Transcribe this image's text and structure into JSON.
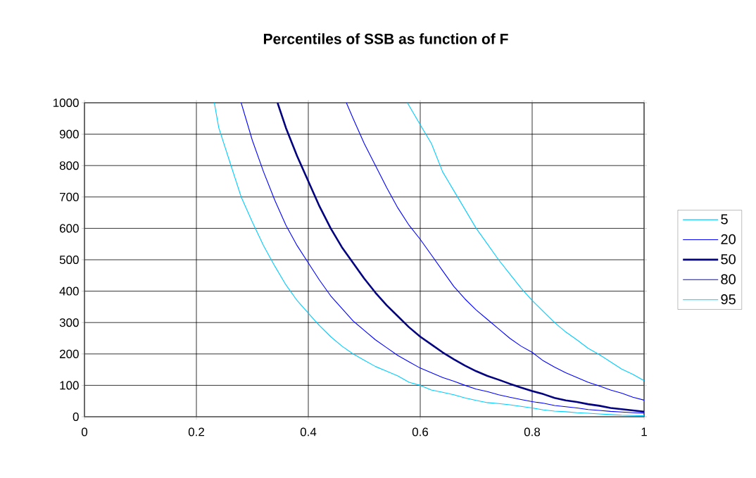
{
  "chart_data": {
    "type": "line",
    "title": "Percentiles of SSB as function of F",
    "xlim": [
      0,
      1
    ],
    "xticks": [
      0,
      0.2,
      0.4,
      0.6,
      0.8,
      1
    ],
    "ylim": [
      0,
      1000
    ],
    "yticks": [
      0,
      100,
      200,
      300,
      400,
      500,
      600,
      700,
      800,
      900,
      1000
    ],
    "grid": true,
    "legend": "right",
    "marker": "none",
    "line_style": "solid",
    "series": [
      {
        "name": "5",
        "color": "#00ccff",
        "x": [
          0.232,
          0.24,
          0.26,
          0.28,
          0.3,
          0.32,
          0.34,
          0.36,
          0.38,
          0.4,
          0.42,
          0.44,
          0.46,
          0.48,
          0.5,
          0.52,
          0.54,
          0.56,
          0.58,
          0.6,
          0.62,
          0.64,
          0.66,
          0.68,
          0.7,
          0.72,
          0.74,
          0.76,
          0.78,
          0.8,
          0.82,
          0.84,
          0.86,
          0.88,
          0.9,
          0.92,
          0.94,
          0.96,
          0.98,
          1
        ],
        "values": [
          1000,
          920,
          810,
          700,
          620,
          545,
          480,
          420,
          370,
          330,
          290,
          255,
          225,
          200,
          180,
          160,
          145,
          130,
          110,
          100,
          85,
          78,
          70,
          60,
          52,
          45,
          42,
          38,
          33,
          28,
          22,
          18,
          16,
          13,
          11,
          9,
          7,
          5,
          4,
          3
        ]
      },
      {
        "name": "20",
        "color": "#0000ff",
        "x": [
          0.28,
          0.3,
          0.32,
          0.34,
          0.36,
          0.38,
          0.4,
          0.42,
          0.44,
          0.46,
          0.48,
          0.5,
          0.52,
          0.54,
          0.56,
          0.58,
          0.6,
          0.62,
          0.64,
          0.66,
          0.68,
          0.7,
          0.72,
          0.74,
          0.76,
          0.78,
          0.8,
          0.82,
          0.84,
          0.86,
          0.88,
          0.9,
          0.92,
          0.94,
          0.96,
          0.98,
          1
        ],
        "values": [
          1000,
          880,
          780,
          690,
          610,
          545,
          490,
          435,
          385,
          345,
          305,
          275,
          245,
          220,
          195,
          175,
          155,
          140,
          125,
          113,
          100,
          88,
          80,
          70,
          62,
          55,
          48,
          43,
          36,
          32,
          28,
          23,
          20,
          17,
          15,
          13,
          11
        ]
      },
      {
        "name": "50",
        "color": "#000080",
        "x": [
          0.345,
          0.36,
          0.38,
          0.4,
          0.42,
          0.44,
          0.46,
          0.48,
          0.5,
          0.52,
          0.54,
          0.56,
          0.58,
          0.6,
          0.62,
          0.64,
          0.66,
          0.68,
          0.7,
          0.72,
          0.74,
          0.76,
          0.78,
          0.8,
          0.82,
          0.84,
          0.86,
          0.88,
          0.9,
          0.92,
          0.94,
          0.96,
          0.98,
          1
        ],
        "values": [
          1000,
          920,
          830,
          750,
          670,
          600,
          540,
          490,
          440,
          395,
          355,
          320,
          285,
          255,
          230,
          205,
          183,
          163,
          145,
          130,
          118,
          105,
          93,
          82,
          72,
          60,
          52,
          47,
          40,
          35,
          28,
          24,
          20,
          16
        ]
      },
      {
        "name": "80",
        "color": "#0000ff",
        "x": [
          0.468,
          0.48,
          0.5,
          0.52,
          0.54,
          0.56,
          0.58,
          0.6,
          0.62,
          0.64,
          0.66,
          0.68,
          0.7,
          0.72,
          0.74,
          0.76,
          0.78,
          0.8,
          0.82,
          0.84,
          0.86,
          0.88,
          0.9,
          0.92,
          0.94,
          0.96,
          0.98,
          1
        ],
        "values": [
          1000,
          950,
          870,
          800,
          730,
          665,
          610,
          565,
          515,
          465,
          415,
          375,
          340,
          310,
          280,
          250,
          225,
          205,
          178,
          158,
          140,
          125,
          110,
          98,
          85,
          75,
          62,
          53
        ]
      },
      {
        "name": "95",
        "color": "#00ccff",
        "x": [
          0.577,
          0.6,
          0.62,
          0.64,
          0.66,
          0.68,
          0.7,
          0.72,
          0.74,
          0.76,
          0.78,
          0.8,
          0.82,
          0.84,
          0.86,
          0.88,
          0.9,
          0.92,
          0.94,
          0.96,
          0.98,
          1
        ],
        "values": [
          1000,
          930,
          870,
          780,
          720,
          660,
          600,
          550,
          500,
          455,
          410,
          370,
          335,
          300,
          270,
          245,
          218,
          198,
          175,
          152,
          135,
          115
        ]
      }
    ]
  }
}
